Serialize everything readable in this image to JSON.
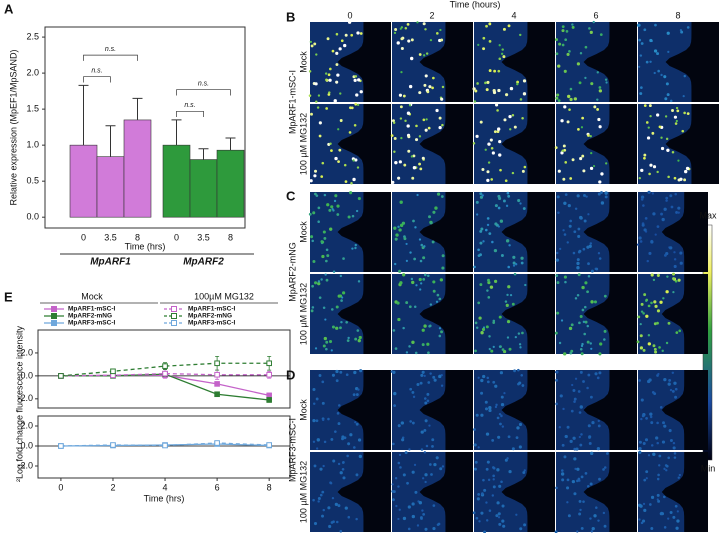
{
  "figure": {
    "panels": [
      "A",
      "B",
      "C",
      "D",
      "E"
    ],
    "time_header": "Time (hours)",
    "times": [
      "0",
      "2",
      "4",
      "6",
      "8"
    ],
    "rows": [
      {
        "construct": "MpARF1-mSC-I",
        "conditions": [
          "Mock",
          "100 µM MG132"
        ]
      },
      {
        "construct": "MpARF2-mNG",
        "conditions": [
          "Mock",
          "100 µM MG132"
        ]
      },
      {
        "construct": "MpARF3-mSC-I",
        "conditions": [
          "Mock",
          "100 µM MG132"
        ]
      }
    ],
    "colorbar": {
      "max": "Max",
      "min": "Min"
    },
    "e_ylabel": "²Log fold change fluorescence intensity",
    "legend_groups": [
      "Mock",
      "100µM MG132"
    ]
  },
  "chart_data": [
    {
      "type": "bar",
      "ylabel": "Relative expression (MpEF1/MpSAND)",
      "xlabel": "Time (hrs)",
      "groups": [
        {
          "name": "MpARF1",
          "color": "#d17bd9",
          "categories": [
            "0",
            "3.5",
            "8"
          ],
          "values": [
            1.0,
            0.84,
            1.35
          ],
          "errors": [
            0.83,
            0.43,
            0.3
          ],
          "comparisons": [
            "n.s.",
            "n.s."
          ]
        },
        {
          "name": "MpARF2",
          "color": "#2e9a3c",
          "categories": [
            "0",
            "3.5",
            "8"
          ],
          "values": [
            1.0,
            0.8,
            0.93
          ],
          "errors": [
            0.35,
            0.15,
            0.17
          ],
          "comparisons": [
            "n.s.",
            "n.s."
          ]
        }
      ],
      "ylim": [
        -0.15,
        2.64
      ],
      "yticks": [
        {
          "value": 0,
          "label": "0.0"
        },
        {
          "value": 0.5,
          "label": "0.5"
        },
        {
          "value": 1,
          "label": "1.0"
        },
        {
          "value": 1.5,
          "label": "1.5"
        },
        {
          "value": 2,
          "label": "2.0"
        },
        {
          "value": 2.5,
          "label": "2.5"
        }
      ]
    },
    {
      "type": "line",
      "x": [
        0,
        2,
        4,
        6,
        8
      ],
      "xlim": [
        -0.88,
        8.8
      ],
      "ylim": [
        -2.8,
        4.0
      ],
      "zero_line": true,
      "yticks": [
        {
          "value": -2,
          "label": "-2.0"
        },
        {
          "value": 0,
          "label": "0.0"
        },
        {
          "value": 2,
          "label": "2.0"
        }
      ],
      "series": [
        {
          "name": "MpARF1-mSC-I",
          "color": "#c463c9",
          "dash": false,
          "values": [
            0,
            0.05,
            0.05,
            -0.7,
            -1.7
          ],
          "errors": [
            0.05,
            0.1,
            0.1,
            0.15,
            0.2
          ]
        },
        {
          "name": "MpARF2-mNG",
          "color": "#2e7d32",
          "dash": false,
          "values": [
            0,
            0.0,
            0.15,
            -1.6,
            -2.1
          ],
          "errors": [
            0.05,
            0.1,
            0.15,
            0.2,
            0.2
          ]
        },
        {
          "name": "MpARF1-mSC-I",
          "color": "#c463c9",
          "dash": true,
          "values": [
            0,
            0.05,
            0.2,
            0.1,
            0.1
          ],
          "errors": [
            0.05,
            0.1,
            0.4,
            0.4,
            0.3
          ]
        },
        {
          "name": "MpARF2-mNG",
          "color": "#2e7d32",
          "dash": true,
          "values": [
            0,
            0.4,
            0.85,
            1.1,
            1.1
          ],
          "errors": [
            0.05,
            0.15,
            0.3,
            0.6,
            0.6
          ]
        }
      ]
    },
    {
      "type": "line",
      "x": [
        0,
        2,
        4,
        6,
        8
      ],
      "xlim": [
        -0.88,
        8.8
      ],
      "ylim": [
        -3.2,
        3.0
      ],
      "zero_line": true,
      "xlabel": "Time (hrs)",
      "xticks": [
        0,
        2,
        4,
        6,
        8
      ],
      "yticks": [
        {
          "value": -2,
          "label": "-2.0"
        },
        {
          "value": 0,
          "label": "0.0"
        },
        {
          "value": 2,
          "label": "2.0"
        }
      ],
      "series": [
        {
          "name": "MpARF3-mSC-I",
          "color": "#6fa8dc",
          "dash": false,
          "values": [
            0,
            0.05,
            0.1,
            0.2,
            0.05
          ],
          "errors": [
            0.05,
            0.1,
            0.1,
            0.15,
            0.1
          ]
        },
        {
          "name": "MpARF3-mSC-I",
          "color": "#6fa8dc",
          "dash": true,
          "values": [
            0,
            0.1,
            0.05,
            0.3,
            0.1
          ],
          "errors": [
            0.05,
            0.1,
            0.1,
            0.2,
            0.1
          ]
        }
      ]
    }
  ]
}
